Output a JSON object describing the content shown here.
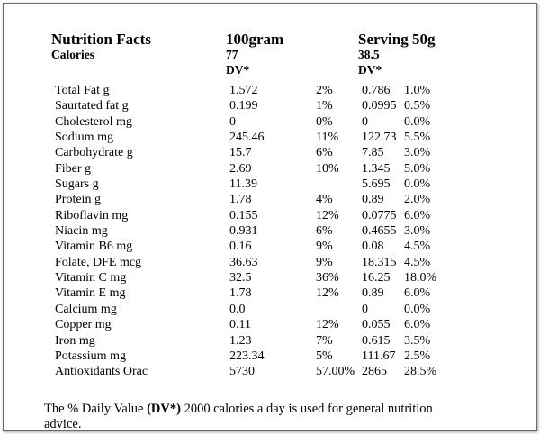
{
  "header": {
    "title": "Nutrition Facts",
    "calories_label": "Calories",
    "col_100g": "100gram",
    "calories_100g": "77",
    "dv_100g": "DV*",
    "col_serving": "Serving 50g",
    "calories_serving": "38.5",
    "dv_serving": "DV*"
  },
  "rows": [
    {
      "name": "Total Fat  g",
      "v100": "1.572",
      "dv100": "2%",
      "vserv": "0.786",
      "dvserv": "1.0%"
    },
    {
      "name": "Saurtated fat g",
      "v100": "0.199",
      "dv100": "1%",
      "vserv": "0.0995",
      "dvserv": "0.5%"
    },
    {
      "name": "Cholesterol  mg",
      "v100": "0",
      "dv100": "0%",
      "vserv": "0",
      "dvserv": "0.0%"
    },
    {
      "name": "Sodium mg",
      "v100": "245.46",
      "dv100": "11%",
      "vserv": "122.73",
      "dvserv": "5.5%"
    },
    {
      "name": "Carbohydrate g",
      "v100": "15.7",
      "dv100": "6%",
      "vserv": "7.85",
      "dvserv": "3.0%"
    },
    {
      "name": "Fiber g",
      "v100": "2.69",
      "dv100": "10%",
      "vserv": "1.345",
      "dvserv": "5.0%"
    },
    {
      "name": "Sugars g",
      "v100": "11.39",
      "dv100": "",
      "vserv": "5.695",
      "dvserv": "0.0%"
    },
    {
      "name": "Protein g",
      "v100": "1.78",
      "dv100": "4%",
      "vserv": "0.89",
      "dvserv": "2.0%"
    },
    {
      "name": "Riboflavin mg",
      "v100": "0.155",
      "dv100": "12%",
      "vserv": "0.0775",
      "dvserv": "6.0%"
    },
    {
      "name": "Niacin mg",
      "v100": "0.931",
      "dv100": "6%",
      "vserv": "0.4655",
      "dvserv": "3.0%"
    },
    {
      "name": "Vitamin B6  mg",
      "v100": "0.16",
      "dv100": "9%",
      "vserv": "0.08",
      "dvserv": "4.5%"
    },
    {
      "name": "Folate, DFE mcg",
      "v100": "36.63",
      "dv100": "9%",
      "vserv": "18.315",
      "dvserv": "4.5%"
    },
    {
      "name": "Vitamin C mg",
      "v100": "32.5",
      "dv100": "36%",
      "vserv": "16.25",
      "dvserv": "18.0%"
    },
    {
      "name": "Vitamin E mg",
      "v100": "1.78",
      "dv100": "12%",
      "vserv": "0.89",
      "dvserv": "6.0%"
    },
    {
      "name": "Calcium mg",
      "v100": "0.0",
      "dv100": "",
      "vserv": "0",
      "dvserv": "0.0%"
    },
    {
      "name": "Copper mg",
      "v100": "0.11",
      "dv100": "12%",
      "vserv": "0.055",
      "dvserv": "6.0%"
    },
    {
      "name": "Iron mg",
      "v100": "1.23",
      "dv100": "7%",
      "vserv": "0.615",
      "dvserv": "3.5%"
    },
    {
      "name": "Potassium mg",
      "v100": "223.34",
      "dv100": "5%",
      "vserv": "111.67",
      "dvserv": "2.5%"
    },
    {
      "name": "Antioxidants Orac",
      "v100": "5730",
      "dv100": "57.00%",
      "vserv": "2865",
      "dvserv": "28.5%"
    }
  ],
  "footnote": {
    "prefix": "The % Daily Value ",
    "bold": "(DV*)",
    "suffix": " 2000 calories a day is used for general nutrition advice."
  }
}
